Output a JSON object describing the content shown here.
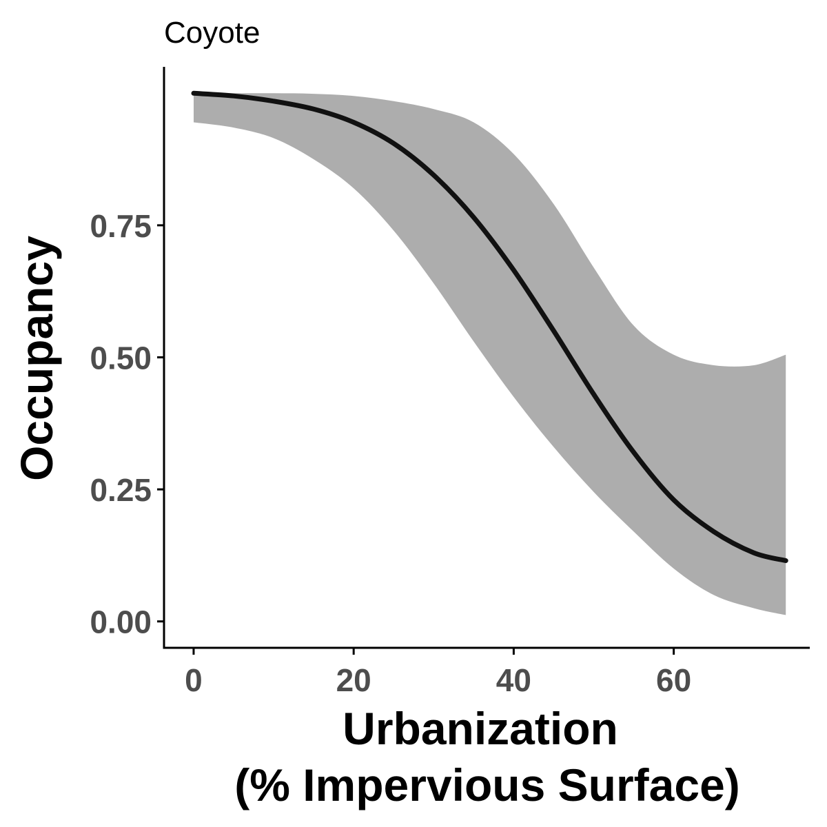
{
  "chart_data": {
    "type": "line",
    "title": "Coyote",
    "xlabel": [
      "Urbanization",
      "(% Impervious Surface)"
    ],
    "ylabel": "Occupancy",
    "x_ticks": [
      0,
      20,
      40,
      60
    ],
    "y_ticks": [
      "0.00",
      "0.25",
      "0.50",
      "0.75"
    ],
    "xlim": [
      -3.7,
      77
    ],
    "ylim": [
      -0.05,
      1.05
    ],
    "grid": false,
    "legend": "none",
    "series": [
      {
        "x": [
          0,
          5,
          10,
          15,
          20,
          25,
          30,
          35,
          40,
          45,
          50,
          55,
          60,
          65,
          70,
          74
        ],
        "y": [
          1.0,
          0.995,
          0.985,
          0.97,
          0.945,
          0.905,
          0.845,
          0.765,
          0.665,
          0.55,
          0.43,
          0.32,
          0.23,
          0.17,
          0.13,
          0.115
        ],
        "lower": [
          0.945,
          0.935,
          0.915,
          0.875,
          0.82,
          0.74,
          0.64,
          0.53,
          0.425,
          0.33,
          0.245,
          0.17,
          0.1,
          0.05,
          0.025,
          0.012
        ],
        "upper": [
          1.0,
          1.0,
          1.0,
          0.999,
          0.995,
          0.985,
          0.97,
          0.945,
          0.885,
          0.79,
          0.67,
          0.56,
          0.505,
          0.485,
          0.485,
          0.505
        ]
      }
    ],
    "colors": {
      "line": "#111111",
      "ribbon": "#adadad",
      "axis": "#000000",
      "tick_label": "#4d4d4d"
    }
  }
}
